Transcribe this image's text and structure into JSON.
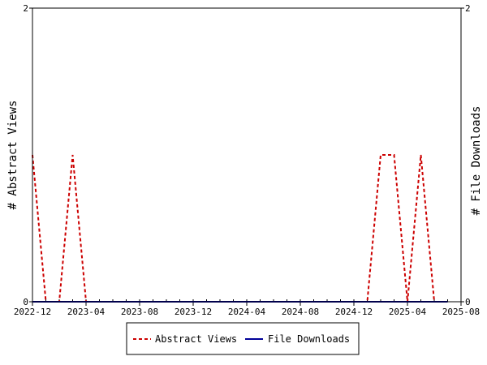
{
  "chart_data": {
    "type": "line",
    "title": "",
    "y_left_label": "# Abstract Views",
    "y_right_label": "# File Downloads",
    "y_left_range": [
      0,
      2
    ],
    "y_right_range": [
      0,
      2
    ],
    "x_tick_labels": [
      "2022-12",
      "2023-04",
      "2023-08",
      "2023-12",
      "2024-04",
      "2024-08",
      "2024-12",
      "2025-04",
      "2025-08"
    ],
    "y_left_tick_labels": [
      "0",
      "2"
    ],
    "y_right_tick_labels": [
      "0",
      "2"
    ],
    "x_range": [
      "2022-12",
      "2025-08"
    ],
    "months": [
      "2022-12",
      "2023-01",
      "2023-02",
      "2023-03",
      "2023-04",
      "2023-05",
      "2023-06",
      "2023-07",
      "2023-08",
      "2023-09",
      "2023-10",
      "2023-11",
      "2023-12",
      "2024-01",
      "2024-02",
      "2024-03",
      "2024-04",
      "2024-05",
      "2024-06",
      "2024-07",
      "2024-08",
      "2024-09",
      "2024-10",
      "2024-11",
      "2024-12",
      "2025-01",
      "2025-02",
      "2025-03",
      "2025-04",
      "2025-05",
      "2025-06",
      "2025-07"
    ],
    "series": [
      {
        "name": "Abstract Views",
        "color": "#cc0000",
        "style": "dashed",
        "axis": "left",
        "values": [
          1,
          0,
          0,
          1,
          0,
          0,
          0,
          0,
          0,
          0,
          0,
          0,
          0,
          0,
          0,
          0,
          0,
          0,
          0,
          0,
          0,
          0,
          0,
          0,
          0,
          0,
          1,
          1,
          0,
          1,
          0,
          0
        ]
      },
      {
        "name": "File Downloads",
        "color": "#000099",
        "style": "solid",
        "axis": "right",
        "values": [
          0,
          0,
          0,
          0,
          0,
          0,
          0,
          0,
          0,
          0,
          0,
          0,
          0,
          0,
          0,
          0,
          0,
          0,
          0,
          0,
          0,
          0,
          0,
          0,
          0,
          0,
          0,
          0,
          0,
          0,
          0,
          0
        ]
      }
    ],
    "legend": {
      "position": "bottom",
      "items": [
        "Abstract Views",
        "File Downloads"
      ]
    },
    "grid": false
  }
}
